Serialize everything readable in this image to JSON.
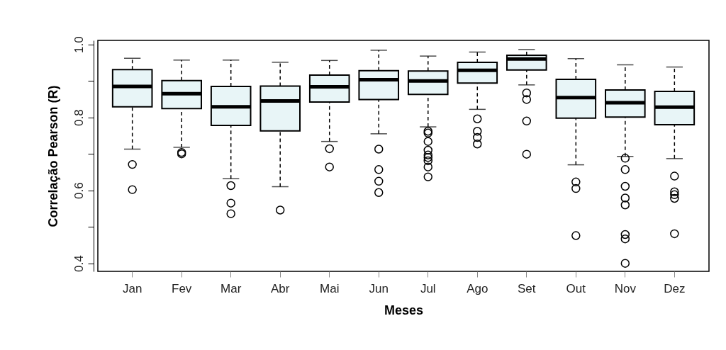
{
  "chart_data": {
    "type": "box",
    "xlabel": "Meses",
    "ylabel": "Correlação Pearson (R)",
    "categories": [
      "Jan",
      "Fev",
      "Mar",
      "Abr",
      "Mai",
      "Jun",
      "Jul",
      "Ago",
      "Set",
      "Out",
      "Nov",
      "Dez"
    ],
    "color": "#e8f5f7",
    "boxes": [
      {
        "low": 0.713,
        "q1": 0.829,
        "median": 0.885,
        "q3": 0.931,
        "high": 0.962,
        "outliers": [
          0.671,
          0.602
        ]
      },
      {
        "low": 0.718,
        "q1": 0.824,
        "median": 0.865,
        "q3": 0.901,
        "high": 0.957,
        "outliers": [
          0.704,
          0.7
        ]
      },
      {
        "low": 0.632,
        "q1": 0.778,
        "median": 0.829,
        "q3": 0.885,
        "high": 0.957,
        "outliers": [
          0.613,
          0.565,
          0.536
        ]
      },
      {
        "low": 0.61,
        "q1": 0.763,
        "median": 0.845,
        "q3": 0.886,
        "high": 0.951,
        "outliers": [
          0.546
        ]
      },
      {
        "low": 0.734,
        "q1": 0.842,
        "median": 0.884,
        "q3": 0.916,
        "high": 0.956,
        "outliers": [
          0.714,
          0.664
        ]
      },
      {
        "low": 0.755,
        "q1": 0.849,
        "median": 0.903,
        "q3": 0.928,
        "high": 0.984,
        "outliers": [
          0.713,
          0.657,
          0.625,
          0.594
        ]
      },
      {
        "low": 0.774,
        "q1": 0.863,
        "median": 0.9,
        "q3": 0.927,
        "high": 0.968,
        "outliers": [
          0.762,
          0.757,
          0.734,
          0.71,
          0.697,
          0.69,
          0.681,
          0.664,
          0.637
        ]
      },
      {
        "low": 0.822,
        "q1": 0.894,
        "median": 0.929,
        "q3": 0.951,
        "high": 0.979,
        "outliers": [
          0.796,
          0.762,
          0.745,
          0.727
        ]
      },
      {
        "low": 0.889,
        "q1": 0.93,
        "median": 0.96,
        "q3": 0.97,
        "high": 0.986,
        "outliers": [
          0.867,
          0.849,
          0.79,
          0.699
        ]
      },
      {
        "low": 0.67,
        "q1": 0.798,
        "median": 0.854,
        "q3": 0.904,
        "high": 0.961,
        "outliers": [
          0.623,
          0.605,
          0.476
        ]
      },
      {
        "low": 0.693,
        "q1": 0.801,
        "median": 0.84,
        "q3": 0.875,
        "high": 0.944,
        "outliers": [
          0.688,
          0.657,
          0.611,
          0.579,
          0.56,
          0.479,
          0.467,
          0.4
        ]
      },
      {
        "low": 0.687,
        "q1": 0.78,
        "median": 0.828,
        "q3": 0.871,
        "high": 0.938,
        "outliers": [
          0.639,
          0.596,
          0.588,
          0.578,
          0.481
        ]
      }
    ],
    "ylim": [
      0.378,
      1.011
    ],
    "yticks": [
      0.4,
      {
        "value": 0.5,
        "label": null
      },
      0.6,
      {
        "value": 0.7,
        "label": null
      },
      0.8,
      {
        "value": 0.9,
        "label": null
      },
      {
        "value": 1.0,
        "label": "1.0"
      }
    ],
    "grid": false
  }
}
